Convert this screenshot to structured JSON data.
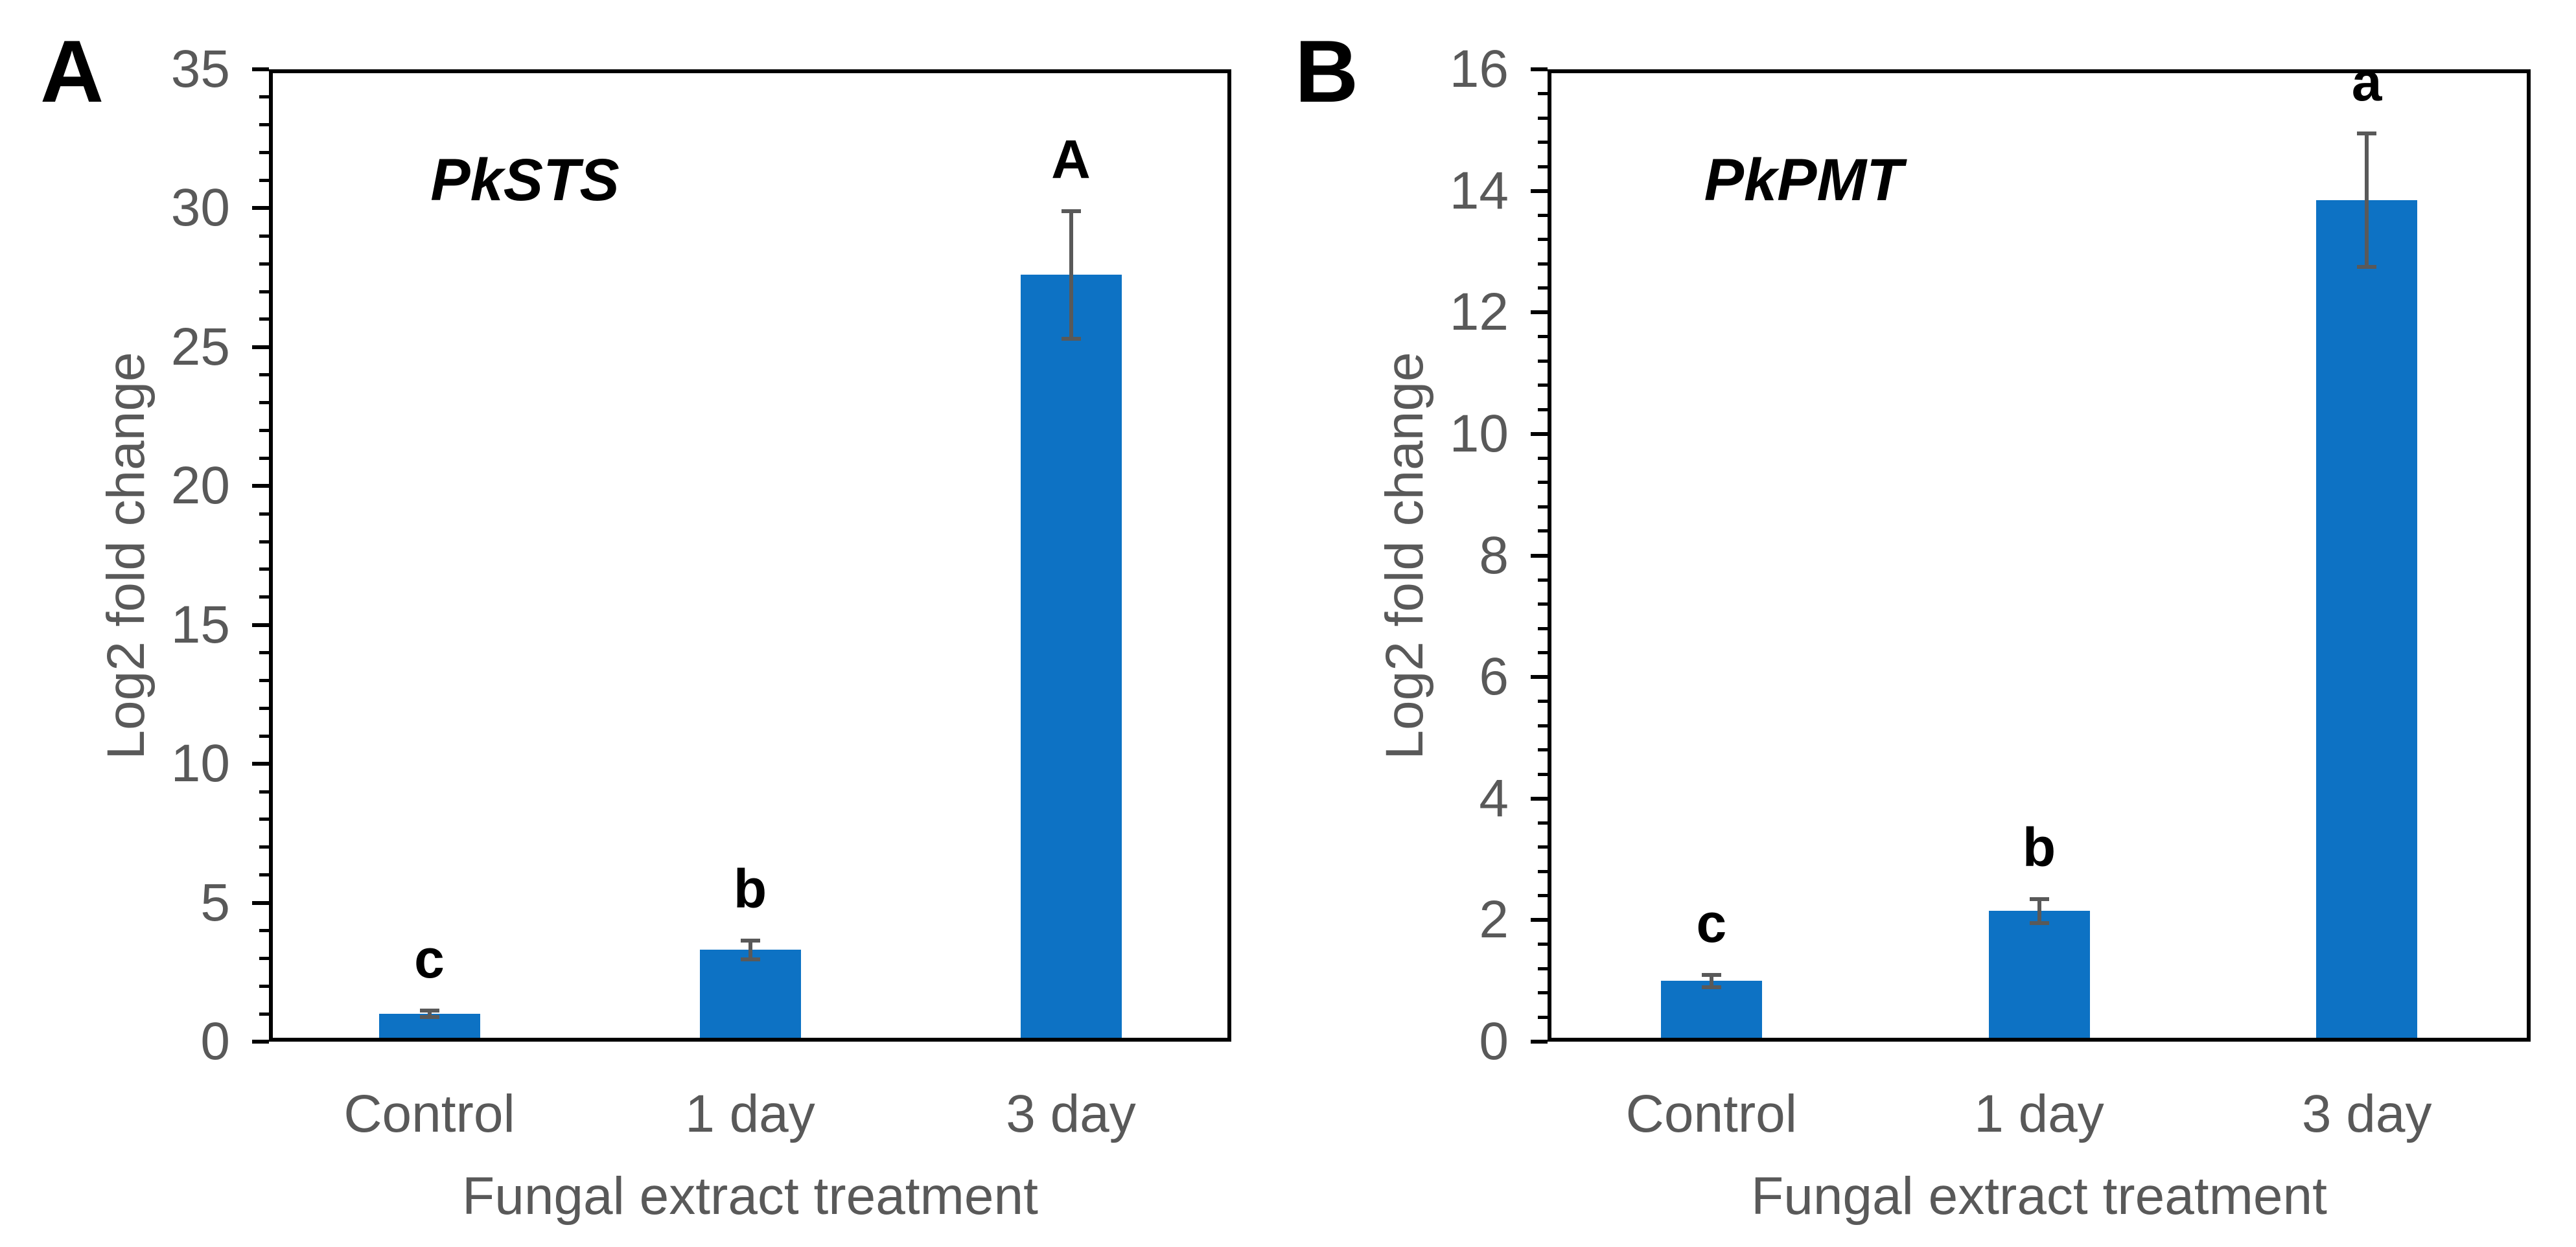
{
  "figure_type": "two-panel scientific bar figure",
  "colors": {
    "bar": "#0D72C4",
    "error_bar": "#595959",
    "axis_text": "#595959",
    "axis_line": "#000000",
    "annotation_text": "#000000",
    "background": "#FFFFFF"
  },
  "chart_data": [
    {
      "type": "bar",
      "panel_letter": "A",
      "title": "PkSTS",
      "categories": [
        "Control",
        "1 day",
        "3 day"
      ],
      "values": [
        1.0,
        3.3,
        27.6
      ],
      "errors": [
        0.12,
        0.33,
        2.3
      ],
      "sig_labels": [
        "c",
        "b",
        "A"
      ],
      "xlabel": "Fungal extract treatment",
      "ylabel": "Log2 fold change",
      "ylim": [
        0,
        35
      ],
      "y_major_step": 5,
      "y_minor_step": 1,
      "grid": false,
      "legend": false
    },
    {
      "type": "bar",
      "panel_letter": "B",
      "title": "PkPMT",
      "categories": [
        "Control",
        "1 day",
        "3 day"
      ],
      "values": [
        1.0,
        2.15,
        13.85
      ],
      "errors": [
        0.1,
        0.2,
        1.1
      ],
      "sig_labels": [
        "c",
        "b",
        "a"
      ],
      "xlabel": "Fungal extract treatment",
      "ylabel": "Log2 fold change",
      "ylim": [
        0,
        16
      ],
      "y_major_step": 2,
      "y_minor_step": 0.4,
      "grid": false,
      "legend": false
    }
  ]
}
